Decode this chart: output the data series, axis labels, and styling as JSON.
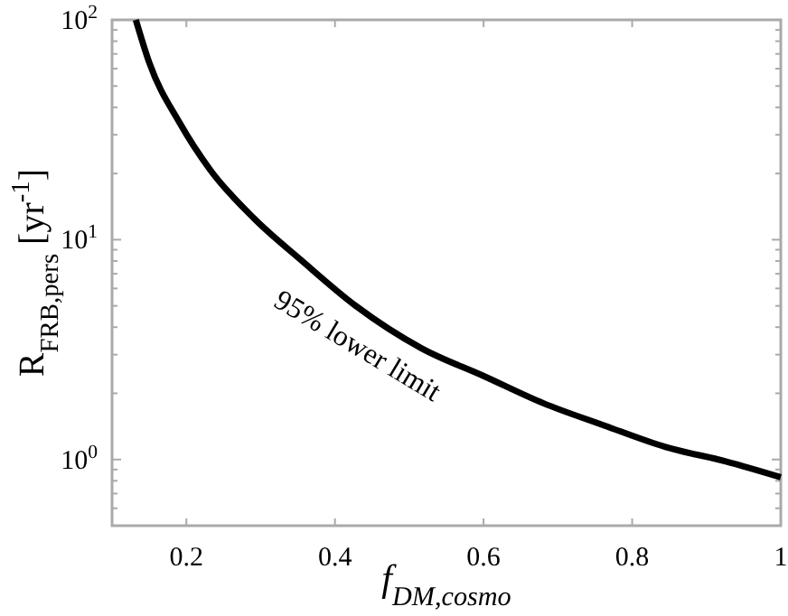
{
  "chart_data": {
    "type": "line",
    "xlabel": "f$_{DM,cosmo}$",
    "ylabel": "R$_{FRB,pers}$ [yr$^{-1}$]",
    "x": [
      0.132,
      0.15,
      0.191,
      0.232,
      0.291,
      0.354,
      0.428,
      0.517,
      0.6,
      0.681,
      0.762,
      0.845,
      0.926,
      1.0
    ],
    "series": [
      {
        "color": "#000000",
        "values": [
          100,
          64,
          34,
          20.8,
          12.5,
          8.1,
          5.0,
          3.2,
          2.4,
          1.8,
          1.43,
          1.14,
          0.98,
          0.83
        ]
      }
    ],
    "xlim": [
      0.1,
      1
    ],
    "xticks": [
      0.2,
      0.4,
      0.6,
      0.8,
      1
    ],
    "ylim": [
      0.5,
      100
    ],
    "log": true,
    "yticks": [
      {
        "value": 0.6,
        "label": null
      },
      {
        "value": 0.7,
        "label": null
      },
      {
        "value": 0.8,
        "label": null
      },
      {
        "value": 0.9,
        "label": null
      },
      {
        "value": 1,
        "label": "10$^{0}$"
      },
      {
        "value": 2,
        "label": null
      },
      {
        "value": 3,
        "label": null
      },
      {
        "value": 4,
        "label": null
      },
      {
        "value": 5,
        "label": null
      },
      {
        "value": 6,
        "label": null
      },
      {
        "value": 7,
        "label": null
      },
      {
        "value": 8,
        "label": null
      },
      {
        "value": 9,
        "label": null
      },
      {
        "value": 10,
        "label": "10$^{1}$"
      },
      {
        "value": 20,
        "label": null
      },
      {
        "value": 30,
        "label": null
      },
      {
        "value": 40,
        "label": null
      },
      {
        "value": 50,
        "label": null
      },
      {
        "value": 60,
        "label": null
      },
      {
        "value": 70,
        "label": null
      },
      {
        "value": 80,
        "label": null
      },
      {
        "value": 90,
        "label": null
      },
      {
        "value": 100,
        "label": "10$^{2}$"
      }
    ],
    "annotations": [
      "95% lower limit"
    ],
    "grid": false,
    "marker": "none",
    "line_style": "solid"
  }
}
